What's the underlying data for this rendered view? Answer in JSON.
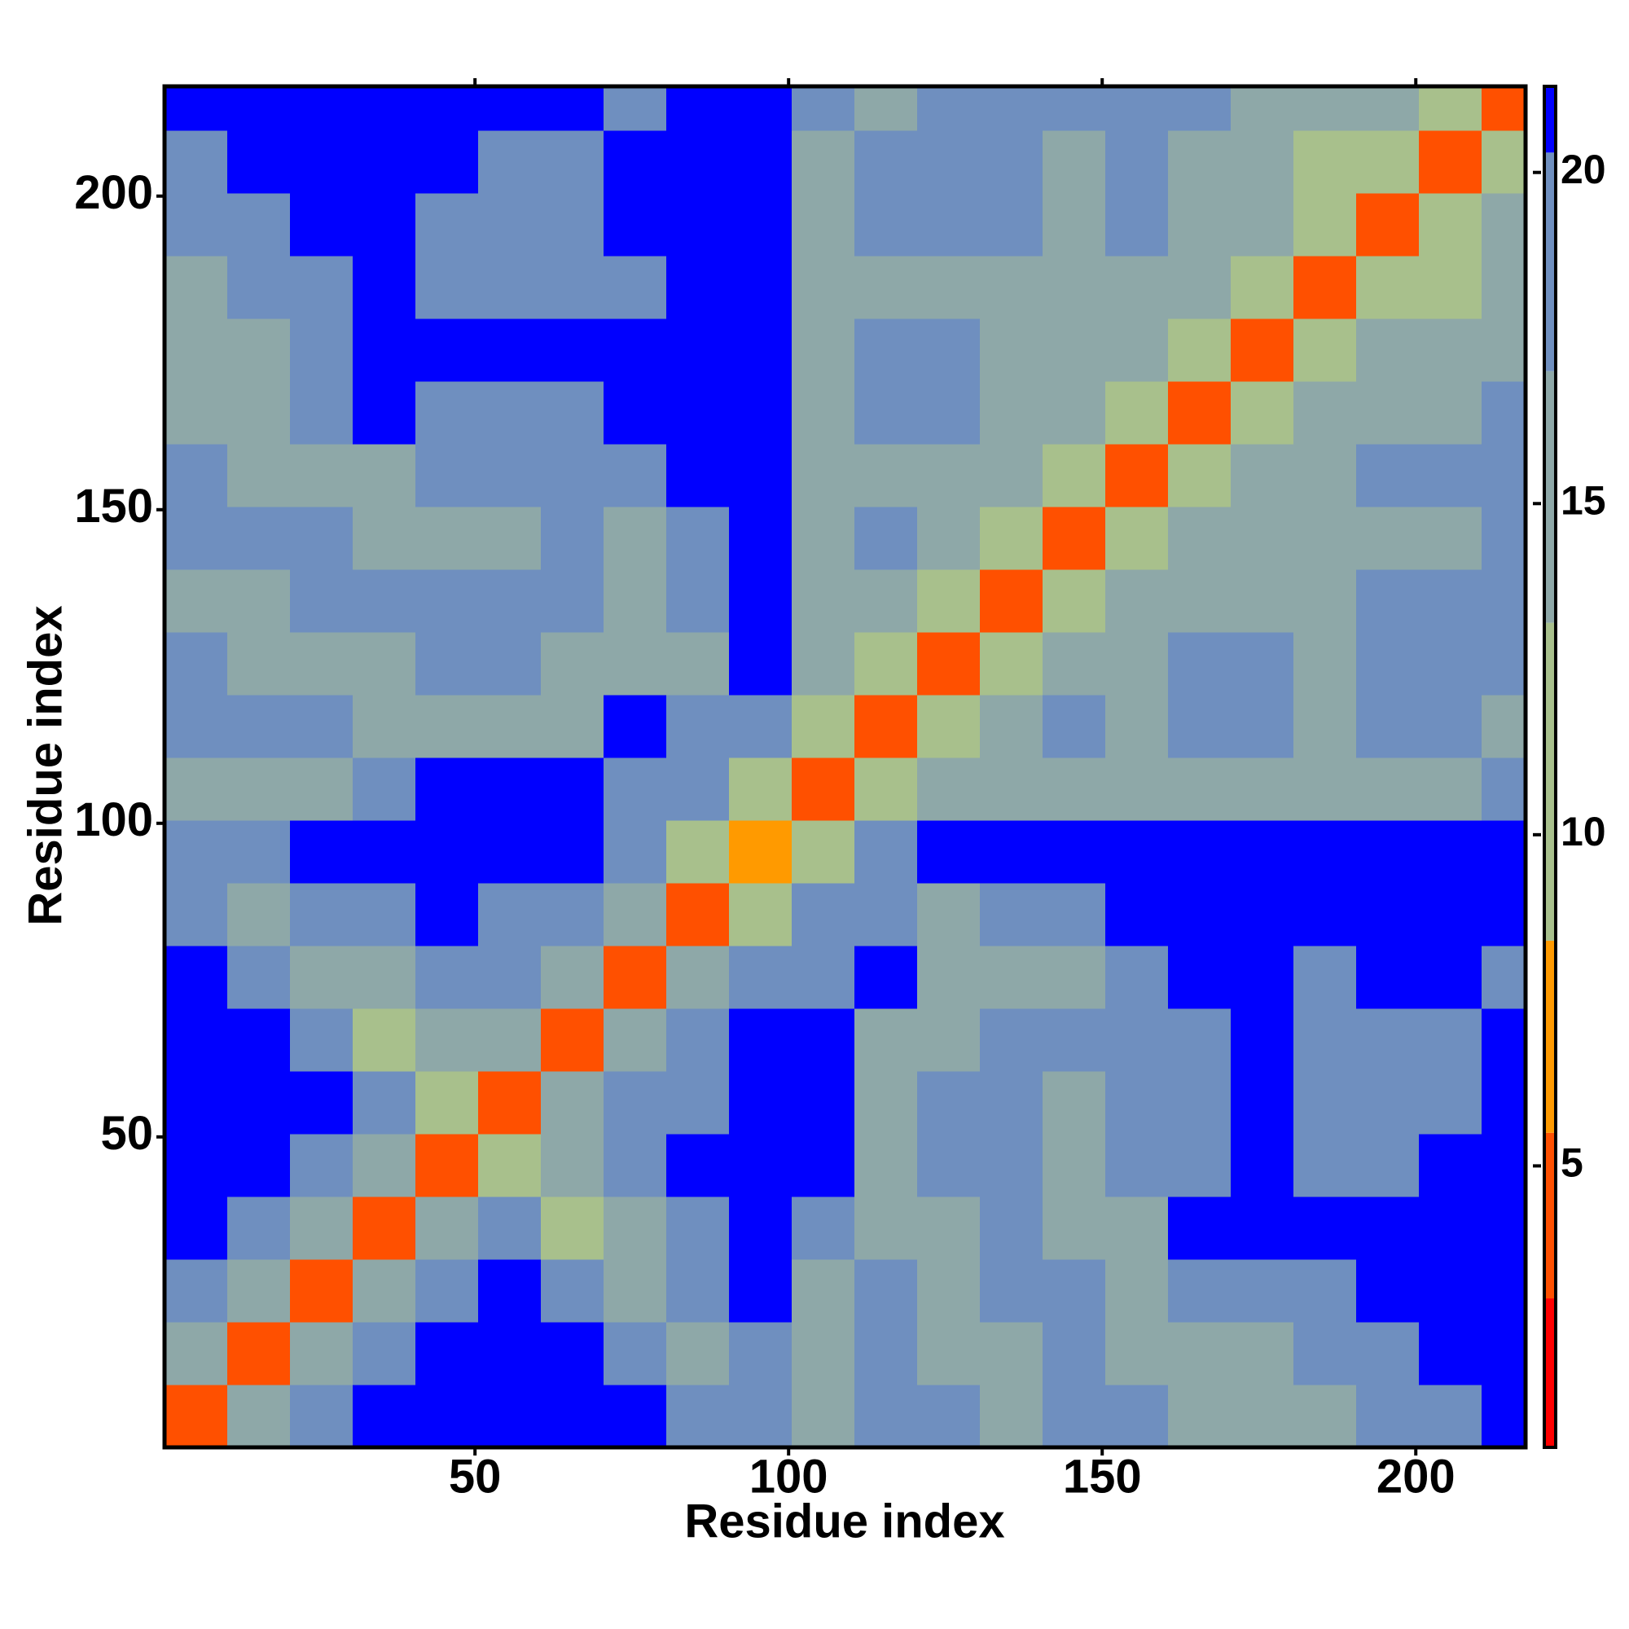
{
  "chart_data": {
    "type": "heatmap",
    "xlabel": "Residue index",
    "ylabel": "Residue index",
    "xlim": [
      0.5,
      217.5
    ],
    "ylim": [
      0.5,
      217.5
    ],
    "xticks": [
      50,
      100,
      150,
      200
    ],
    "yticks": [
      50,
      100,
      150,
      200
    ],
    "xbins": [
      0.5,
      10.5,
      20.5,
      30.5,
      40.5,
      50.5,
      60.5,
      70.5,
      80.5,
      90.5,
      100.5,
      110.5,
      120.5,
      130.5,
      140.5,
      150.5,
      160.5,
      170.5,
      180.5,
      190.5,
      200.5,
      210.5,
      217.5
    ],
    "ybins": [
      0.5,
      10.5,
      20.5,
      30.5,
      40.5,
      50.5,
      60.5,
      70.5,
      80.5,
      90.5,
      100.5,
      110.5,
      120.5,
      130.5,
      140.5,
      150.5,
      160.5,
      170.5,
      180.5,
      190.5,
      200.5,
      210.5,
      217.5
    ],
    "values": [
      [
        5,
        15,
        20,
        21,
        21,
        21,
        21,
        21,
        20,
        20,
        15,
        19,
        17,
        14,
        19,
        18,
        14,
        15,
        16,
        19,
        19,
        21
      ],
      [
        15,
        5,
        15,
        18,
        21,
        21,
        21,
        19,
        16,
        19,
        15,
        19,
        16,
        14,
        18,
        14,
        15,
        16,
        17,
        20,
        21,
        21
      ],
      [
        20,
        15,
        5,
        15,
        18,
        21,
        18,
        14,
        17,
        21,
        16,
        19,
        14,
        17,
        18,
        14,
        17,
        19,
        19,
        21,
        21,
        21
      ],
      [
        21,
        18,
        15,
        5,
        15,
        17,
        13,
        15,
        19,
        21,
        19,
        16,
        14,
        18,
        14,
        16,
        21,
        21,
        21,
        21,
        21,
        21
      ],
      [
        21,
        21,
        18,
        15,
        5,
        12,
        14,
        17,
        21,
        21,
        21,
        14,
        18,
        19,
        14,
        17,
        18,
        21,
        19,
        20,
        21,
        21
      ],
      [
        21,
        21,
        21,
        17,
        12,
        5,
        15,
        17,
        19,
        21,
        21,
        15,
        18,
        18,
        15,
        18,
        19,
        21,
        19,
        19,
        20,
        21
      ],
      [
        21,
        21,
        18,
        13,
        14,
        15,
        5,
        15,
        20,
        21,
        21,
        15,
        16,
        18,
        17,
        19,
        19,
        21,
        19,
        20,
        20,
        21
      ],
      [
        21,
        19,
        14,
        15,
        17,
        17,
        15,
        5,
        15,
        19,
        20,
        21,
        14,
        16,
        16,
        18,
        21,
        21,
        20,
        21,
        21,
        20
      ],
      [
        20,
        16,
        17,
        19,
        21,
        19,
        20,
        15,
        5,
        13,
        17,
        18,
        16,
        18,
        19,
        21,
        21,
        21,
        21,
        21,
        21,
        21
      ],
      [
        20,
        19,
        21,
        21,
        21,
        21,
        21,
        19,
        13,
        6,
        13,
        20,
        21,
        21,
        21,
        21,
        21,
        21,
        21,
        21,
        21,
        21
      ],
      [
        15,
        15,
        16,
        19,
        21,
        21,
        21,
        20,
        17,
        13,
        5,
        13,
        15,
        14,
        16,
        15,
        15,
        15,
        14,
        16,
        16,
        18
      ],
      [
        19,
        19,
        19,
        16,
        14,
        15,
        15,
        21,
        18,
        20,
        13,
        5,
        13,
        15,
        17,
        16,
        19,
        17,
        15,
        19,
        19,
        16
      ],
      [
        17,
        16,
        14,
        14,
        18,
        18,
        16,
        14,
        16,
        21,
        15,
        13,
        5,
        13,
        15,
        16,
        18,
        17,
        16,
        19,
        19,
        17
      ],
      [
        14,
        14,
        17,
        18,
        19,
        18,
        18,
        16,
        18,
        21,
        14,
        15,
        13,
        5,
        13,
        14,
        14,
        16,
        16,
        19,
        19,
        17
      ],
      [
        19,
        18,
        18,
        14,
        14,
        15,
        17,
        16,
        19,
        21,
        16,
        17,
        15,
        13,
        5,
        13,
        15,
        16,
        16,
        15,
        15,
        17
      ],
      [
        18,
        14,
        14,
        16,
        17,
        18,
        19,
        18,
        21,
        21,
        15,
        16,
        16,
        14,
        13,
        5,
        13,
        15,
        16,
        17,
        18,
        19
      ],
      [
        14,
        15,
        17,
        21,
        18,
        19,
        19,
        21,
        21,
        21,
        15,
        19,
        18,
        14,
        15,
        13,
        5,
        13,
        14,
        16,
        16,
        18
      ],
      [
        15,
        16,
        19,
        21,
        21,
        21,
        21,
        21,
        21,
        21,
        15,
        17,
        17,
        16,
        16,
        15,
        13,
        5,
        13,
        14,
        15,
        16
      ],
      [
        16,
        17,
        19,
        21,
        19,
        19,
        19,
        20,
        21,
        21,
        14,
        15,
        16,
        16,
        16,
        16,
        14,
        13,
        5,
        13,
        13,
        15
      ],
      [
        19,
        20,
        21,
        21,
        20,
        19,
        20,
        21,
        21,
        21,
        16,
        19,
        19,
        19,
        15,
        17,
        16,
        14,
        13,
        5,
        13,
        14
      ],
      [
        19,
        21,
        21,
        21,
        21,
        20,
        20,
        21,
        21,
        21,
        16,
        19,
        19,
        19,
        15,
        18,
        16,
        15,
        13,
        13,
        5,
        13
      ],
      [
        21,
        21,
        21,
        21,
        21,
        21,
        21,
        20,
        21,
        21,
        18,
        16,
        17,
        17,
        17,
        19,
        18,
        16,
        15,
        14,
        13,
        5
      ]
    ],
    "colorscale": [
      [
        0.75,
        "#ff0000"
      ],
      [
        3,
        "#ff5000"
      ],
      [
        5.5,
        "#ff9a00"
      ],
      [
        8.4,
        "#a8c08c"
      ],
      [
        13.2,
        "#8ea8a8"
      ],
      [
        17,
        "#6f8fbf"
      ],
      [
        20.3,
        "#0000ff"
      ]
    ],
    "clim": [
      0.75,
      21.3
    ],
    "cticks": [
      5,
      10,
      15,
      20
    ]
  }
}
